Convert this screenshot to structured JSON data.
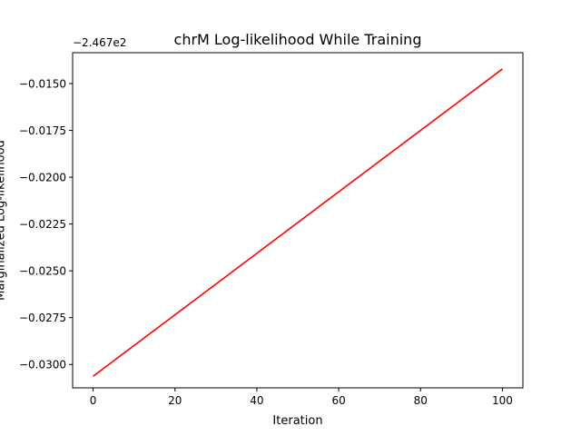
{
  "chart_data": {
    "type": "line",
    "title": "chrM Log-likelihood While Training",
    "xlabel": "Iteration",
    "ylabel": "Marginalized Log-likelihood",
    "y_offset_label": "−2.467e2",
    "xlim": [
      -5,
      105
    ],
    "ylim": [
      -0.03125,
      -0.01335
    ],
    "x_ticks": [
      0,
      20,
      40,
      60,
      80,
      100
    ],
    "x_tick_labels": [
      "0",
      "20",
      "40",
      "60",
      "80",
      "100"
    ],
    "y_ticks": [
      -0.03,
      -0.0275,
      -0.025,
      -0.0225,
      -0.02,
      -0.0175,
      -0.015
    ],
    "y_tick_labels": [
      "−0.0300",
      "−0.0275",
      "−0.0250",
      "−0.0225",
      "−0.0200",
      "−0.0175",
      "−0.0150"
    ],
    "grid": false,
    "series": [
      {
        "color": "#ff0000",
        "x": [
          0,
          100
        ],
        "y": [
          -0.03063,
          -0.01422
        ]
      }
    ]
  }
}
